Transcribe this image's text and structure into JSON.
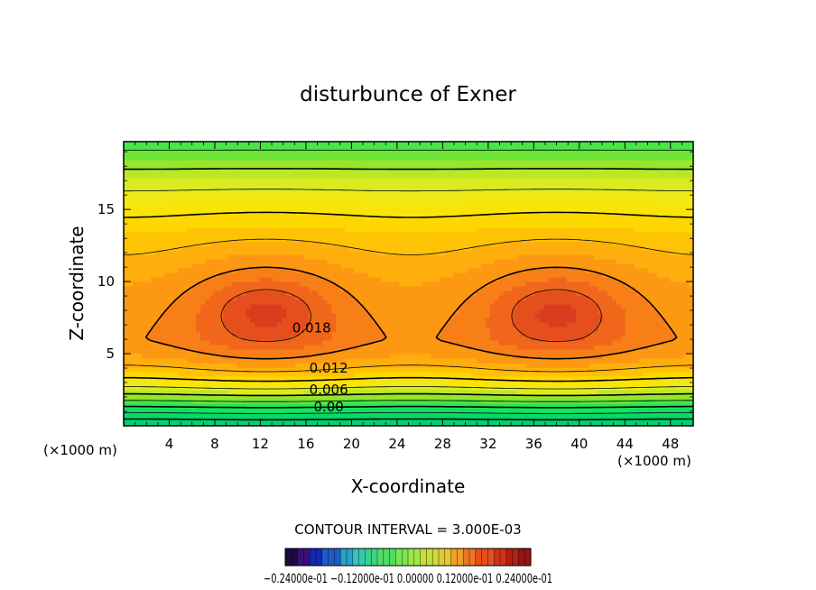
{
  "chart_data": {
    "type": "contour",
    "title": "disturbunce of Exner",
    "xlabel": "X-coordinate",
    "ylabel": "Z-coordinate",
    "x_unit": "(×1000 m)",
    "z_unit": "(×1000 m)",
    "xlim": [
      0,
      50
    ],
    "ylim": [
      0,
      19.7
    ],
    "x_ticks": [
      4,
      8,
      12,
      16,
      20,
      24,
      28,
      32,
      36,
      40,
      44,
      48
    ],
    "y_ticks": [
      5,
      10,
      15
    ],
    "contour_interval_text": "CONTOUR INTERVAL = 3.000E-03",
    "contour_labels": [
      {
        "text": "0.018",
        "x": 16.5,
        "z": 6.8
      },
      {
        "text": "0.012",
        "x": 18,
        "z": 4.0
      },
      {
        "text": "0.006",
        "x": 18,
        "z": 2.5
      },
      {
        "text": "0.00",
        "x": 18,
        "z": 1.3
      }
    ],
    "field_model": {
      "description_values": "max ~0.021 near (12.5, 8) and (38, 8); zero contour near z = 1.3",
      "max_centers": [
        [
          12.5,
          8
        ],
        [
          38,
          8
        ]
      ]
    },
    "colorbar": {
      "min": -0.024,
      "max": 0.024,
      "labels_text": "−0.24000e-01  −0.12000e-01  0.00000  0.12000e-01  0.24000e-01",
      "colors": [
        "#1e0a3c",
        "#3c0f78",
        "#1428b4",
        "#1e5ac8",
        "#28a0c8",
        "#32c8b4",
        "#3cd28c",
        "#50dc64",
        "#78e650",
        "#a0e646",
        "#c8dc3c",
        "#e6c832",
        "#f0a028",
        "#eb7823",
        "#e6501e",
        "#d23219",
        "#b41e14",
        "#961414"
      ]
    }
  }
}
